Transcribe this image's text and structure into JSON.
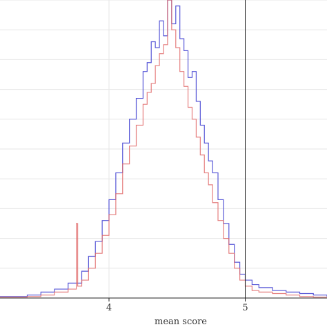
{
  "chart_data": {
    "type": "line",
    "title": "",
    "xlabel": "mean score",
    "ylabel": "",
    "xlim": [
      3.2,
      5.6
    ],
    "ylim": [
      0,
      100
    ],
    "x_ticks": [
      4,
      5
    ],
    "x_tick_labels": [
      "4",
      "5"
    ],
    "grid": true,
    "reference_line_x": 5,
    "series": [
      {
        "color": "#3a3ad0",
        "style": "step",
        "x": [
          3.2,
          3.4,
          3.5,
          3.6,
          3.7,
          3.8,
          3.85,
          3.9,
          3.95,
          4.0,
          4.05,
          4.1,
          4.15,
          4.2,
          4.25,
          4.28,
          4.31,
          4.34,
          4.37,
          4.4,
          4.43,
          4.46,
          4.49,
          4.52,
          4.55,
          4.58,
          4.61,
          4.64,
          4.67,
          4.7,
          4.73,
          4.76,
          4.8,
          4.84,
          4.88,
          4.92,
          4.96,
          5.0,
          5.05,
          5.1,
          5.2,
          5.3,
          5.4,
          5.5,
          5.6
        ],
        "y": [
          0.5,
          1,
          2,
          3,
          5,
          9,
          14,
          19,
          26,
          33,
          42,
          52,
          60,
          67,
          76,
          79,
          86,
          84,
          93,
          88,
          100,
          92,
          98,
          87,
          83,
          74,
          76,
          66,
          58,
          52,
          46,
          42,
          33,
          25,
          18,
          12,
          8,
          6,
          4.5,
          3.5,
          2.5,
          2,
          1.5,
          1,
          0.5
        ]
      },
      {
        "color": "#e06868",
        "style": "step",
        "x": [
          3.2,
          3.4,
          3.5,
          3.6,
          3.7,
          3.76,
          3.77,
          3.8,
          3.85,
          3.9,
          3.95,
          4.0,
          4.05,
          4.1,
          4.15,
          4.2,
          4.25,
          4.28,
          4.31,
          4.34,
          4.37,
          4.4,
          4.43,
          4.46,
          4.49,
          4.52,
          4.55,
          4.58,
          4.61,
          4.64,
          4.67,
          4.7,
          4.73,
          4.76,
          4.8,
          4.84,
          4.88,
          4.92,
          4.96,
          5.0,
          5.05,
          5.1,
          5.2,
          5.3,
          5.4,
          5.5,
          5.6
        ],
        "y": [
          0.3,
          0.5,
          1,
          2,
          3,
          25,
          4,
          6,
          10,
          15,
          21,
          28,
          35,
          45,
          51,
          58,
          65,
          69,
          72,
          78,
          82,
          85,
          100,
          90,
          84,
          76,
          71,
          64,
          60,
          54,
          48,
          42,
          38,
          32,
          26,
          20,
          15,
          10,
          6,
          4,
          2.5,
          2,
          1.5,
          1,
          0.5,
          0.3,
          0.2
        ]
      }
    ]
  }
}
